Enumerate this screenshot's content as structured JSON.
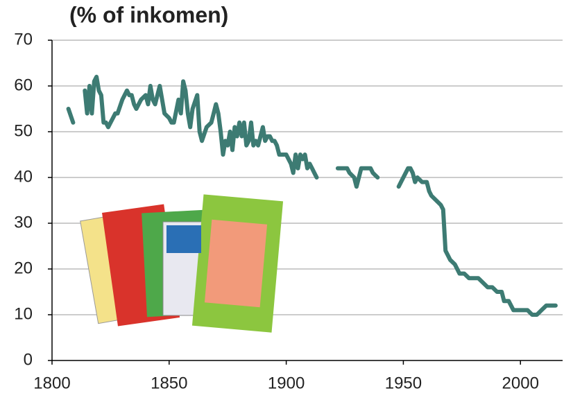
{
  "chart_data": {
    "type": "line",
    "title": "(% of inkomen)",
    "x": [
      1807,
      1809,
      1811,
      1814,
      1815,
      1816,
      1817,
      1818,
      1819,
      1820,
      1821,
      1822,
      1823,
      1824,
      1825,
      1826,
      1827,
      1828,
      1830,
      1832,
      1833,
      1834,
      1835,
      1836,
      1838,
      1840,
      1841,
      1842,
      1843,
      1844,
      1846,
      1847,
      1848,
      1850,
      1851,
      1852,
      1854,
      1855,
      1856,
      1857,
      1858,
      1859,
      1860,
      1862,
      1863,
      1864,
      1866,
      1868,
      1869,
      1870,
      1871,
      1872,
      1873,
      1874,
      1875,
      1876,
      1877,
      1878,
      1879,
      1880,
      1881,
      1882,
      1883,
      1884,
      1885,
      1886,
      1887,
      1888,
      1889,
      1890,
      1891,
      1892,
      1893,
      1894,
      1895,
      1896,
      1897,
      1898,
      1900,
      1901,
      1902,
      1903,
      1904,
      1905,
      1906,
      1907,
      1908,
      1909,
      1910,
      1911,
      1912,
      1913,
      1918,
      1922,
      1924,
      1926,
      1927,
      1929,
      1930,
      1931,
      1932,
      1934,
      1936,
      1937,
      1939,
      1944,
      1948,
      1949,
      1950,
      1952,
      1953,
      1954,
      1955,
      1956,
      1958,
      1960,
      1961,
      1962,
      1964,
      1966,
      1967,
      1968,
      1969,
      1970,
      1972,
      1974,
      1976,
      1978,
      1980,
      1982,
      1984,
      1986,
      1988,
      1990,
      1992,
      1993,
      1995,
      1997,
      2000,
      2003,
      2005,
      2007,
      2009,
      2011,
      2013,
      2015
    ],
    "series": [
      {
        "color": "#3d7b73",
        "values": [
          55,
          52,
          null,
          59,
          54,
          60,
          54,
          61,
          62,
          59,
          58,
          52,
          52,
          51,
          52,
          53,
          54,
          54,
          57,
          59,
          58,
          58,
          56,
          55,
          57,
          58,
          56,
          60,
          57,
          56,
          60,
          57,
          54,
          53,
          52,
          52,
          57,
          54,
          61,
          59,
          54,
          51,
          55,
          58,
          50,
          48,
          51,
          52,
          54,
          56,
          54,
          50,
          45,
          48,
          47,
          50,
          46,
          51,
          49,
          52,
          49,
          52,
          47,
          48,
          52,
          47,
          48,
          47,
          49,
          51,
          48,
          49,
          49,
          48,
          48,
          47,
          45,
          45,
          45,
          44,
          43,
          41,
          45,
          42,
          45,
          44,
          45,
          42,
          43,
          42,
          41,
          40,
          null,
          42,
          42,
          42,
          41,
          40,
          38,
          40,
          42,
          42,
          42,
          41,
          40,
          null,
          38,
          39,
          40,
          42,
          42,
          41,
          39,
          40,
          39,
          39,
          37,
          36,
          35,
          34,
          33,
          24,
          23,
          22,
          21,
          19,
          19,
          18,
          18,
          18,
          17,
          16,
          16,
          15,
          15,
          13,
          13,
          11,
          11,
          11,
          10,
          10,
          11,
          12,
          12,
          12
        ]
      }
    ],
    "xlim": [
      1800,
      2018
    ],
    "ylim": [
      0,
      70
    ],
    "xticks": [
      1800,
      1850,
      1900,
      1950,
      2000
    ],
    "yticks": [
      0,
      10,
      20,
      30,
      40,
      50,
      60,
      70
    ],
    "grid": true
  }
}
